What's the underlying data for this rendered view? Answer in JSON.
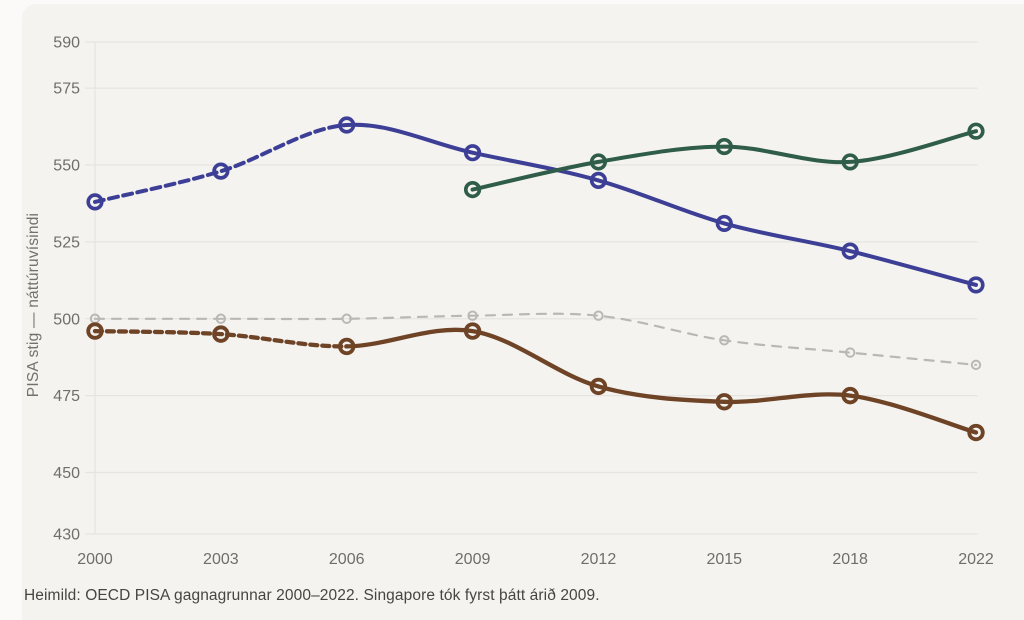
{
  "page": {
    "background": "#fbfaf8",
    "panel_background": "#f4f3ef",
    "gridline_color": "#e5e4e0",
    "tick_label_color": "#6e6e6a",
    "caption_color": "#454541"
  },
  "chart_data": {
    "type": "line",
    "title": "",
    "ylabel": "PISA stig — náttúruvísindi",
    "caption": "Heimild: OECD PISA gagnagrunnar 2000–2022. Singapore tók fyrst þátt árið 2009.",
    "x_years": [
      2000,
      2003,
      2006,
      2009,
      2012,
      2015,
      2018,
      2022
    ],
    "y_ticks": [
      590,
      575,
      550,
      525,
      500,
      475,
      450,
      430
    ],
    "ylim": [
      430,
      590
    ],
    "grid": true,
    "legend": "none",
    "marker": "open-circle",
    "series": [
      {
        "id": "gray-dashed",
        "color": "#b9b8b4",
        "line_style": "dashed",
        "x": [
          2000,
          2003,
          2006,
          2009,
          2012,
          2015,
          2018,
          2022
        ],
        "values": [
          500,
          500,
          500,
          501,
          501,
          493,
          489,
          485
        ]
      },
      {
        "id": "brown",
        "color": "#6e4326",
        "line_style": "dashed-then-solid",
        "solid_from_year": 2006,
        "x": [
          2000,
          2003,
          2006,
          2009,
          2012,
          2015,
          2018,
          2022
        ],
        "values": [
          496,
          495,
          491,
          496,
          478,
          473,
          475,
          463
        ]
      },
      {
        "id": "blue",
        "color": "#3d3f96",
        "line_style": "dashed-then-solid",
        "solid_from_year": 2006,
        "x": [
          2000,
          2003,
          2006,
          2009,
          2012,
          2015,
          2018,
          2022
        ],
        "values": [
          538,
          548,
          563,
          554,
          545,
          531,
          522,
          511
        ]
      },
      {
        "id": "green",
        "color": "#2f5d49",
        "line_style": "solid",
        "x": [
          2009,
          2012,
          2015,
          2018,
          2022
        ],
        "values": [
          542,
          551,
          556,
          551,
          561
        ]
      }
    ]
  }
}
